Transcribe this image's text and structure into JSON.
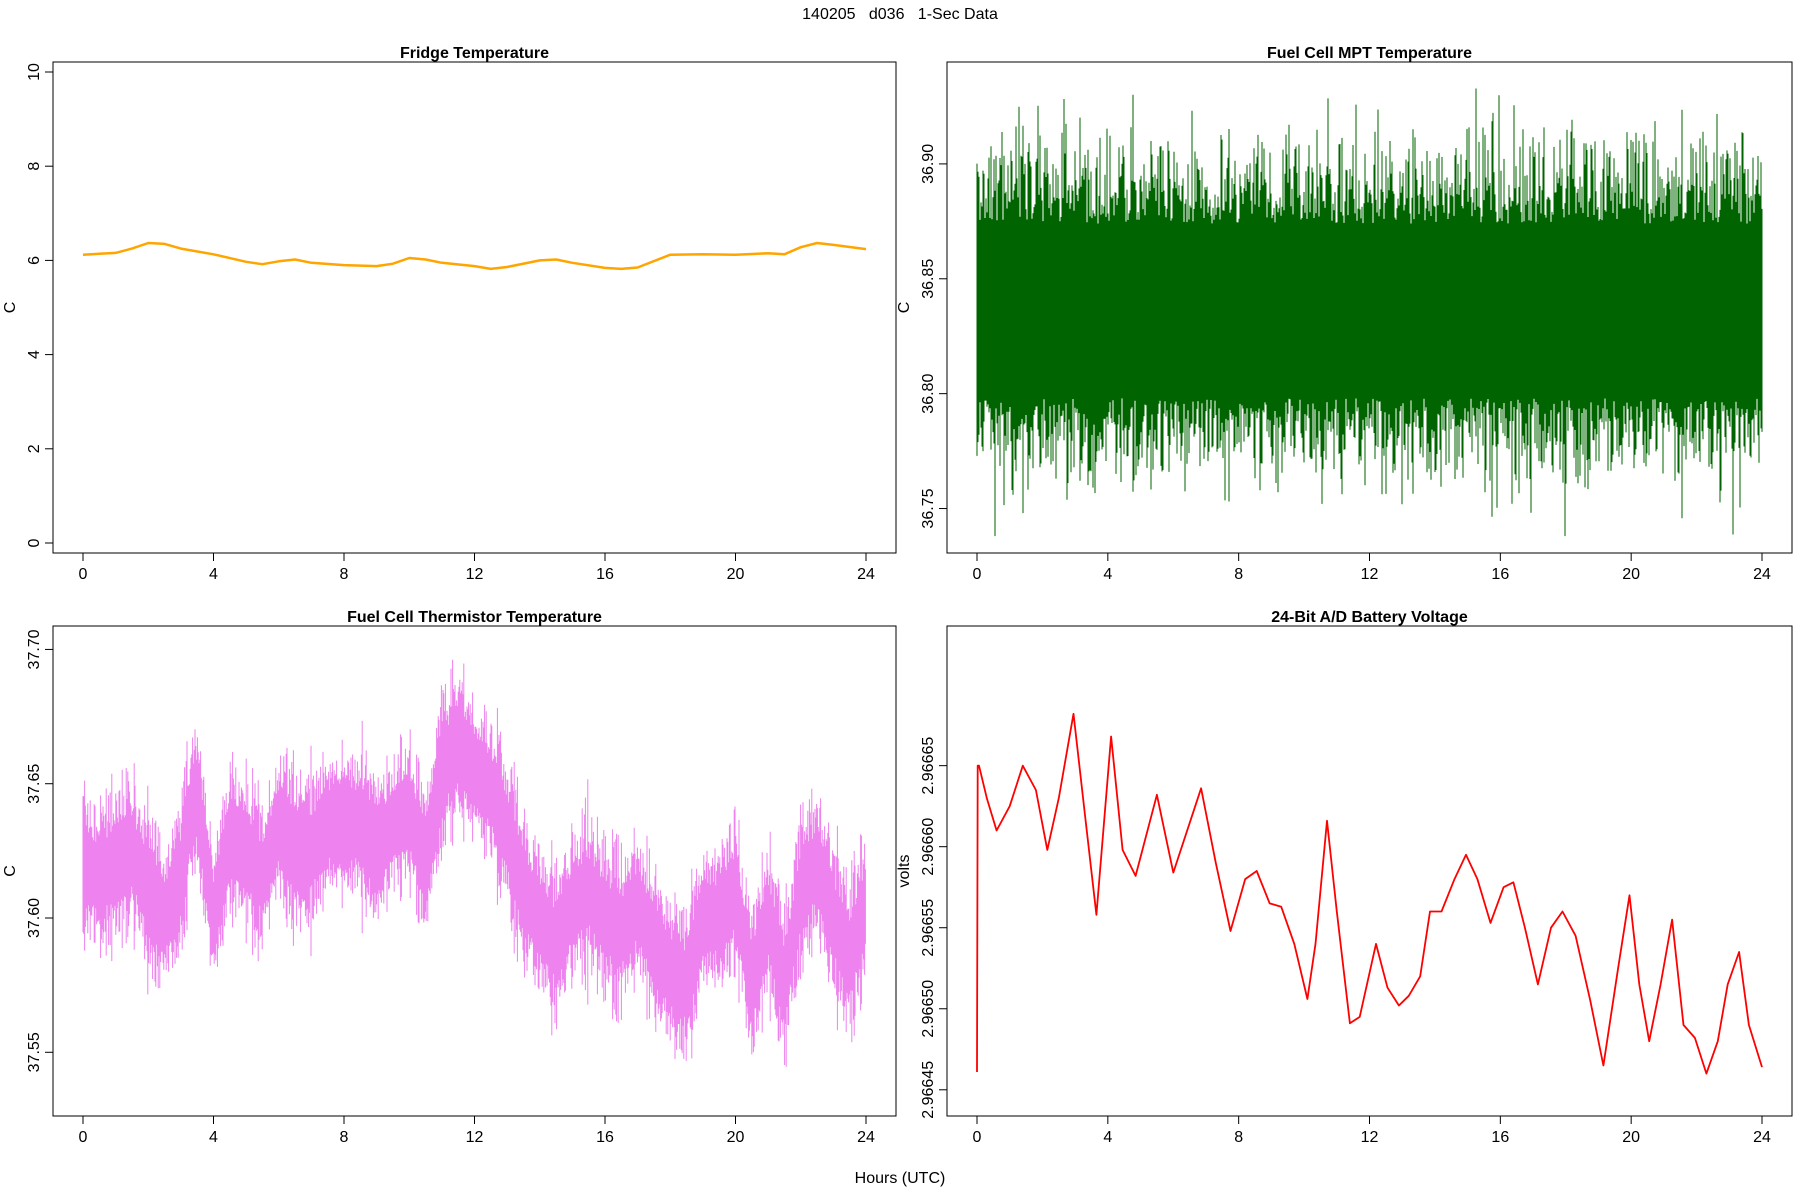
{
  "figure": {
    "title": "140205   d036   1-Sec Data",
    "xlabel": "Hours (UTC)"
  },
  "chart_data": [
    {
      "type": "line",
      "title": "Fridge Temperature",
      "xlabel": "Hours (UTC)",
      "ylabel": "C",
      "xlim": [
        0,
        24
      ],
      "ylim": [
        0,
        10
      ],
      "xticks": [
        0,
        4,
        8,
        12,
        16,
        20,
        24
      ],
      "yticks": [
        0,
        2,
        4,
        6,
        8,
        10
      ],
      "ytick_labels": [
        "0",
        "2",
        "4",
        "6",
        "8",
        "10"
      ],
      "color": "#FFA500",
      "grid": false,
      "series": [
        {
          "x": [
            0,
            0.5,
            1,
            1.5,
            2,
            2.5,
            3,
            4,
            5,
            5.5,
            6,
            6.5,
            7,
            8,
            9,
            9.5,
            10,
            10.5,
            11,
            12,
            12.5,
            13,
            14,
            14.5,
            15,
            16,
            16.5,
            17,
            18,
            19,
            20,
            21,
            21.5,
            22,
            22.5,
            23,
            24
          ],
          "y": [
            6.12,
            6.14,
            6.16,
            6.25,
            6.37,
            6.35,
            6.25,
            6.13,
            5.97,
            5.92,
            5.98,
            6.02,
            5.95,
            5.9,
            5.88,
            5.93,
            6.05,
            6.02,
            5.95,
            5.88,
            5.82,
            5.86,
            6.0,
            6.02,
            5.95,
            5.84,
            5.82,
            5.85,
            6.12,
            6.13,
            6.12,
            6.15,
            6.13,
            6.28,
            6.37,
            6.33,
            6.24
          ]
        }
      ]
    },
    {
      "type": "line",
      "title": "Fuel Cell MPT Temperature",
      "xlabel": "Hours (UTC)",
      "ylabel": "C",
      "xlim": [
        0,
        24
      ],
      "ylim": [
        36.735,
        36.94
      ],
      "xticks": [
        0,
        4,
        8,
        12,
        16,
        20,
        24
      ],
      "yticks": [
        36.75,
        36.8,
        36.85,
        36.9
      ],
      "ytick_labels": [
        "36.75",
        "36.80",
        "36.85",
        "36.90"
      ],
      "color": "#006400",
      "grid": false,
      "series": [
        {
          "x": [
            0,
            24
          ],
          "y": [
            36.836,
            36.836
          ],
          "band": {
            "core_low": 36.798,
            "core_high": 36.874,
            "min": 36.738,
            "max": 36.935
          }
        }
      ]
    },
    {
      "type": "line",
      "title": "Fuel Cell Thermistor Temperature",
      "xlabel": "Hours (UTC)",
      "ylabel": "C",
      "xlim": [
        0,
        24
      ],
      "ylim": [
        37.53,
        37.705
      ],
      "xticks": [
        0,
        4,
        8,
        12,
        16,
        20,
        24
      ],
      "yticks": [
        37.55,
        37.6,
        37.65,
        37.7
      ],
      "ytick_labels": [
        "37.55",
        "37.60",
        "37.65",
        "37.70"
      ],
      "color": "#EE82EE",
      "grid": false,
      "series": [
        {
          "x": [
            0,
            0.5,
            1,
            1.5,
            2,
            2.5,
            3,
            3.3,
            3.5,
            4,
            4.5,
            5,
            5.5,
            6,
            6.5,
            7,
            7.5,
            8,
            8.5,
            9,
            9.5,
            10,
            10.5,
            11,
            11.5,
            12,
            12.5,
            13,
            13.5,
            14,
            14.5,
            15,
            15.5,
            16,
            16.5,
            17,
            17.5,
            18,
            18.5,
            19,
            19.5,
            20,
            20.5,
            21,
            21.5,
            22,
            22.5,
            23,
            23.5,
            24
          ],
          "y": [
            37.62,
            37.615,
            37.62,
            37.625,
            37.61,
            37.6,
            37.615,
            37.64,
            37.645,
            37.6,
            37.63,
            37.625,
            37.615,
            37.635,
            37.625,
            37.625,
            37.635,
            37.635,
            37.635,
            37.625,
            37.635,
            37.64,
            37.62,
            37.655,
            37.665,
            37.655,
            37.648,
            37.632,
            37.61,
            37.6,
            37.59,
            37.605,
            37.61,
            37.6,
            37.595,
            37.605,
            37.59,
            37.58,
            37.575,
            37.6,
            37.6,
            37.61,
            37.575,
            37.6,
            37.575,
            37.61,
            37.62,
            37.6,
            37.585,
            37.605
          ],
          "envelope": 0.022
        }
      ]
    },
    {
      "type": "line",
      "title": "24-Bit A/D Battery Voltage",
      "xlabel": "Hours (UTC)",
      "ylabel": "volts",
      "xlim": [
        0,
        24
      ],
      "ylim": [
        2.96644,
        2.96673
      ],
      "xticks": [
        0,
        4,
        8,
        12,
        16,
        20,
        24
      ],
      "yticks": [
        2.96645,
        2.9665,
        2.96655,
        2.9666,
        2.96665
      ],
      "ytick_labels": [
        "2.96645",
        "2.96650",
        "2.96655",
        "2.96660",
        "2.96665"
      ],
      "color": "#FF0000",
      "grid": false,
      "series": [
        {
          "x": [
            0,
            0.02,
            0.06,
            0.3,
            0.6,
            1.0,
            1.4,
            1.8,
            2.15,
            2.5,
            2.95,
            3.3,
            3.65,
            4.1,
            4.45,
            4.85,
            5.5,
            6.0,
            6.85,
            7.3,
            7.75,
            8.2,
            8.55,
            8.95,
            9.3,
            9.7,
            10.1,
            10.35,
            10.7,
            11.0,
            11.4,
            11.7,
            12.2,
            12.55,
            12.9,
            13.2,
            13.55,
            13.85,
            14.2,
            14.6,
            14.95,
            15.3,
            15.7,
            16.1,
            16.4,
            16.75,
            17.15,
            17.55,
            17.9,
            18.3,
            18.75,
            19.15,
            19.6,
            19.95,
            20.25,
            20.55,
            20.9,
            21.25,
            21.6,
            21.95,
            22.3,
            22.65,
            22.95,
            23.3,
            23.6,
            24.0
          ],
          "y": [
            2.966461,
            2.96665,
            2.96665,
            2.96663,
            2.96661,
            2.966625,
            2.96665,
            2.966635,
            2.966598,
            2.96663,
            2.966682,
            2.96662,
            2.966558,
            2.966668,
            2.966598,
            2.966582,
            2.966632,
            2.966584,
            2.966636,
            2.96659,
            2.966548,
            2.96658,
            2.966585,
            2.966565,
            2.966563,
            2.96654,
            2.966506,
            2.96654,
            2.966616,
            2.96656,
            2.966491,
            2.966495,
            2.96654,
            2.966513,
            2.966502,
            2.966508,
            2.96652,
            2.96656,
            2.96656,
            2.96658,
            2.966595,
            2.96658,
            2.966553,
            2.966575,
            2.966578,
            2.96655,
            2.966515,
            2.96655,
            2.96656,
            2.966545,
            2.966505,
            2.966465,
            2.966525,
            2.96657,
            2.966515,
            2.96648,
            2.966515,
            2.966555,
            2.96649,
            2.966482,
            2.96646,
            2.96648,
            2.966515,
            2.966535,
            2.96649,
            2.966464
          ]
        }
      ]
    }
  ]
}
